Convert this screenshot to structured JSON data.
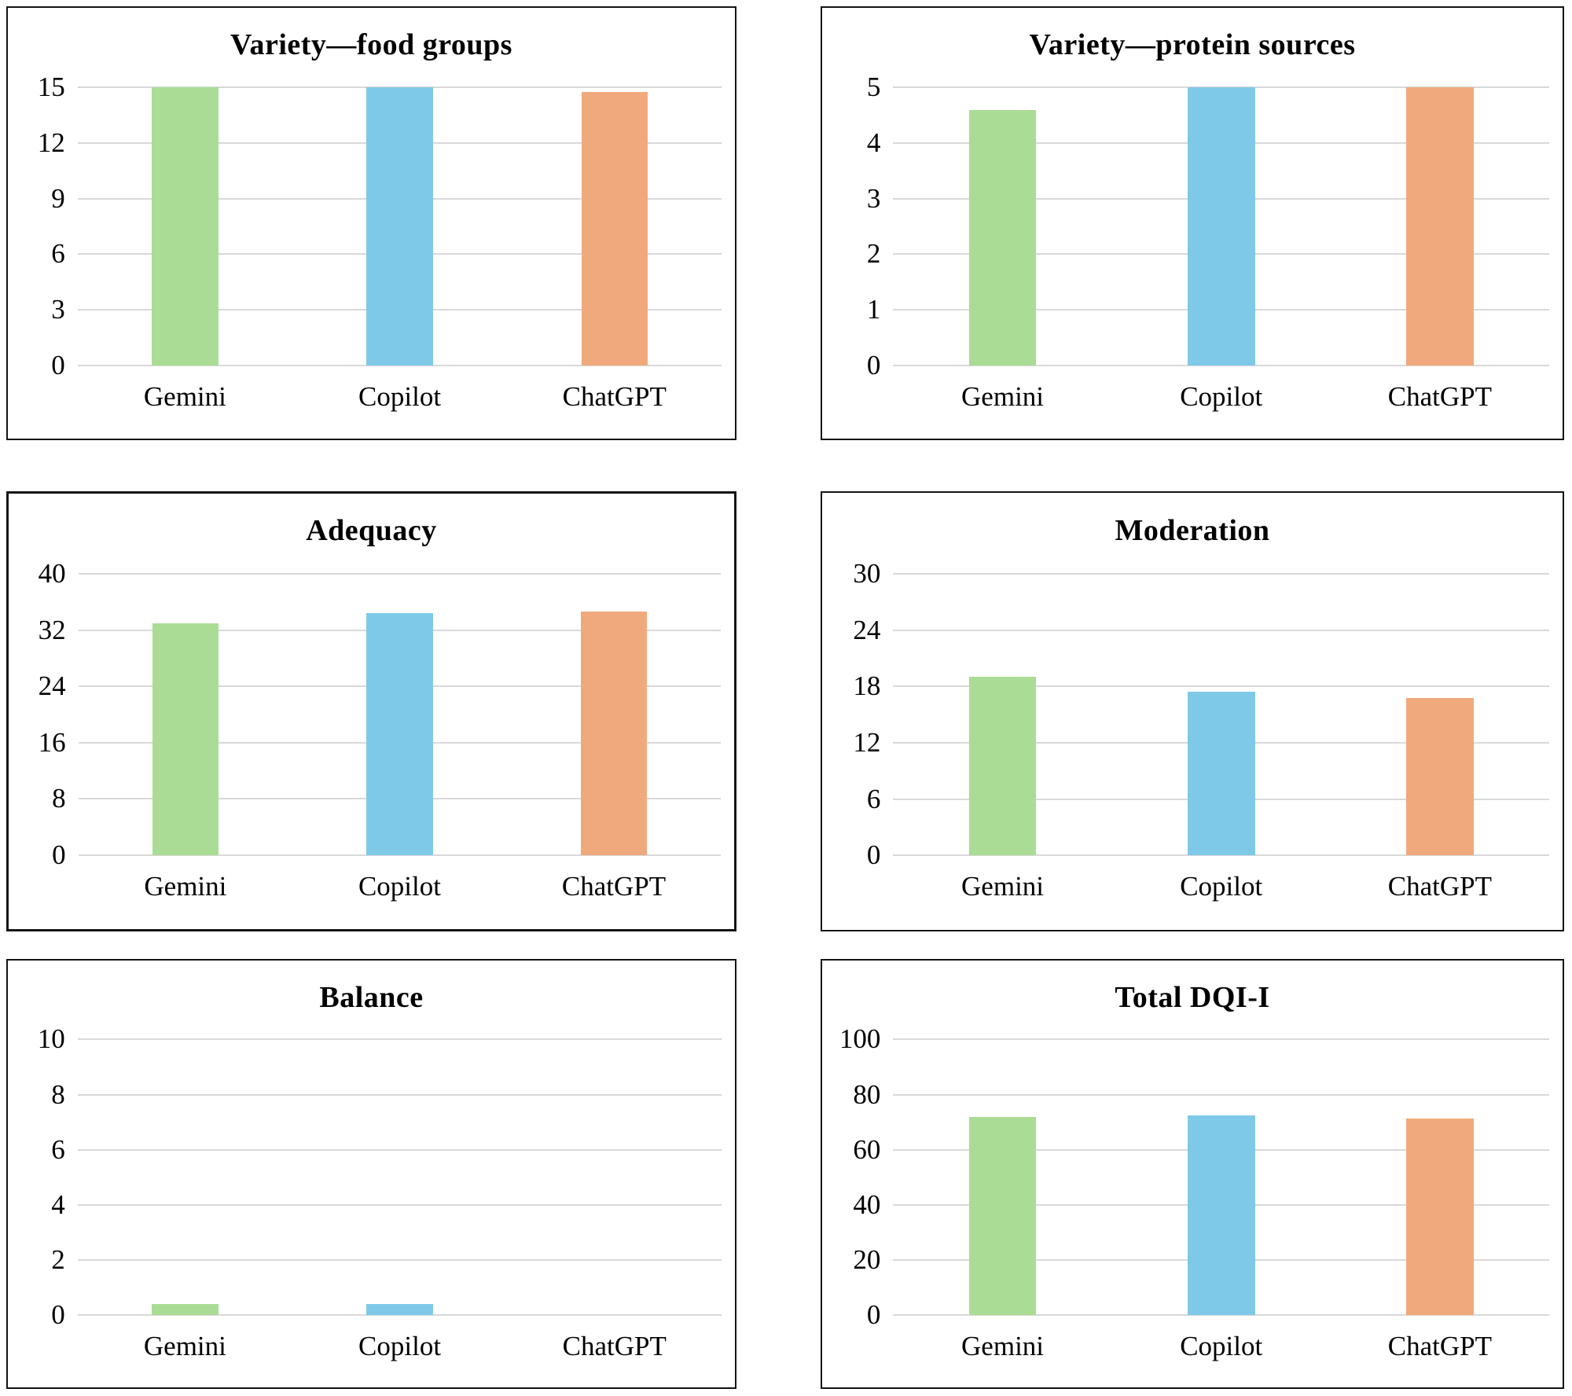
{
  "figure": {
    "background": "#ffffff",
    "panel_border_color": "#141414",
    "grid_color": "#d9d9d9",
    "text_color": "#000000",
    "layout": "2x3 grid of bar charts"
  },
  "categories": [
    "Gemini",
    "Copilot",
    "ChatGPT"
  ],
  "bar_colors": [
    "#aadc96",
    "#7fc9e8",
    "#f0a97c"
  ],
  "chart_data": [
    {
      "type": "bar",
      "title": "Variety—food groups",
      "categories": [
        "Gemini",
        "Copilot",
        "ChatGPT"
      ],
      "values": [
        15,
        15,
        14.75
      ],
      "colors": [
        "#aadc96",
        "#7fc9e8",
        "#f0a97c"
      ],
      "xlabel": "",
      "ylabel": "",
      "ylim": [
        0,
        15
      ],
      "yticks": [
        0,
        3,
        6,
        9,
        12,
        15
      ],
      "grid": true,
      "legend": "none"
    },
    {
      "type": "bar",
      "title": "Variety—protein sources",
      "categories": [
        "Gemini",
        "Copilot",
        "ChatGPT"
      ],
      "values": [
        4.6,
        5,
        5
      ],
      "colors": [
        "#aadc96",
        "#7fc9e8",
        "#f0a97c"
      ],
      "xlabel": "",
      "ylabel": "",
      "ylim": [
        0,
        5
      ],
      "yticks": [
        0,
        1,
        2,
        3,
        4,
        5
      ],
      "grid": true,
      "legend": "none"
    },
    {
      "type": "bar",
      "title": "Adequacy",
      "categories": [
        "Gemini",
        "Copilot",
        "ChatGPT"
      ],
      "values": [
        33,
        34.5,
        34.7
      ],
      "colors": [
        "#aadc96",
        "#7fc9e8",
        "#f0a97c"
      ],
      "xlabel": "",
      "ylabel": "",
      "ylim": [
        0,
        40
      ],
      "yticks": [
        0,
        8,
        16,
        24,
        32,
        40
      ],
      "grid": true,
      "legend": "none"
    },
    {
      "type": "bar",
      "title": "Moderation",
      "categories": [
        "Gemini",
        "Copilot",
        "ChatGPT"
      ],
      "values": [
        19,
        17.4,
        16.75
      ],
      "colors": [
        "#aadc96",
        "#7fc9e8",
        "#f0a97c"
      ],
      "xlabel": "",
      "ylabel": "",
      "ylim": [
        0,
        30
      ],
      "yticks": [
        0,
        6,
        12,
        18,
        24,
        30
      ],
      "grid": true,
      "legend": "none"
    },
    {
      "type": "bar",
      "title": "Balance",
      "categories": [
        "Gemini",
        "Copilot",
        "ChatGPT"
      ],
      "values": [
        0.4,
        0.4,
        0
      ],
      "colors": [
        "#aadc96",
        "#7fc9e8",
        "#f0a97c"
      ],
      "xlabel": "",
      "ylabel": "",
      "ylim": [
        0,
        10
      ],
      "yticks": [
        0,
        2,
        4,
        6,
        8,
        10
      ],
      "grid": true,
      "legend": "none"
    },
    {
      "type": "bar",
      "title": "Total DQI-I",
      "categories": [
        "Gemini",
        "Copilot",
        "ChatGPT"
      ],
      "values": [
        72,
        72.3,
        71.2
      ],
      "colors": [
        "#aadc96",
        "#7fc9e8",
        "#f0a97c"
      ],
      "xlabel": "",
      "ylabel": "",
      "ylim": [
        0,
        100
      ],
      "yticks": [
        0,
        20,
        40,
        60,
        80,
        100
      ],
      "grid": true,
      "legend": "none"
    }
  ]
}
